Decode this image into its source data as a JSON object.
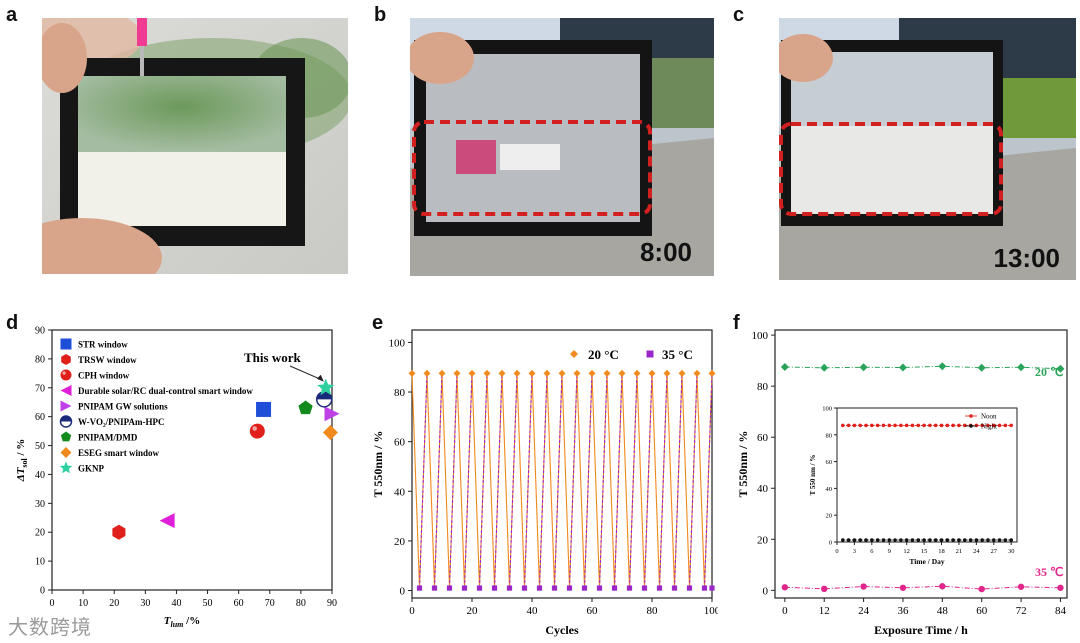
{
  "panels": {
    "a": "a",
    "b": "b",
    "c": "c",
    "d": "d",
    "e": "e",
    "f": "f"
  },
  "photos": {
    "b_time": "8:00",
    "c_time": "13:00"
  },
  "watermark": "大数跨境",
  "chart_data": [
    {
      "panel": "d",
      "type": "scatter",
      "xlabel_main": "T",
      "xlabel_sub": "lum",
      "xlabel_unit": " /%",
      "ylabel_main": "ΔT",
      "ylabel_sub": "sol",
      "ylabel_unit": " / %",
      "xlim": [
        0,
        90
      ],
      "ylim": [
        0,
        90
      ],
      "xticks": [
        "0",
        "10",
        "20",
        "30",
        "40",
        "50",
        "60",
        "70",
        "80",
        "90"
      ],
      "yticks": [
        "0",
        "10",
        "20",
        "30",
        "40",
        "50",
        "60",
        "70",
        "80",
        "90"
      ],
      "annotation": "This work",
      "series": [
        {
          "name": "STR window",
          "marker": "square",
          "color": "#1f4fd8",
          "points": [
            [
              68,
              62.5
            ]
          ]
        },
        {
          "name": "TRSW window",
          "marker": "hexagon",
          "color": "#e0201b",
          "points": [
            [
              21.5,
              20
            ]
          ]
        },
        {
          "name": "CPH window",
          "marker": "sphere",
          "color": "#e0201b",
          "points": [
            [
              66,
              55
            ]
          ]
        },
        {
          "name": "Durable solar/RC dual-control smart window",
          "marker": "triangle-left",
          "color": "#e020d8",
          "points": [
            [
              37,
              24
            ]
          ]
        },
        {
          "name": "PNIPAM GW solutions",
          "marker": "triangle-right",
          "color": "#c040e8",
          "points": [
            [
              90,
              61
            ]
          ]
        },
        {
          "name": "W-VO₂/PNIPAm-HPC",
          "marker": "half-circle",
          "color": "#1a2a7a",
          "points": [
            [
              87.5,
              66
            ]
          ]
        },
        {
          "name": "PNIPAM/DMD",
          "marker": "pentagon",
          "color": "#138a1e",
          "points": [
            [
              81.5,
              63
            ]
          ]
        },
        {
          "name": "ESEG smart window",
          "marker": "diamond",
          "color": "#f08a1c",
          "points": [
            [
              89.5,
              54.5
            ]
          ]
        },
        {
          "name": "GKNP",
          "marker": "star",
          "color": "#2ed0a0",
          "points": [
            [
              88,
              70
            ]
          ]
        }
      ]
    },
    {
      "panel": "e",
      "type": "line",
      "xlabel": "Cycles",
      "ylabel": "T 550nm / %",
      "xlim": [
        0,
        100
      ],
      "ylim": [
        -3,
        105
      ],
      "xticks": [
        "0",
        "20",
        "40",
        "60",
        "80",
        "100"
      ],
      "yticks": [
        "0",
        "20",
        "40",
        "60",
        "80",
        "100"
      ],
      "series": [
        {
          "name": "20 °C",
          "color": "#f08a1c",
          "marker": "diamond",
          "value": 87.5
        },
        {
          "name": "35 °C",
          "color": "#9b27c8",
          "marker": "square",
          "value": 1
        }
      ],
      "cycle_x": [
        0,
        5,
        10,
        15,
        20,
        25,
        30,
        35,
        40,
        45,
        50,
        55,
        60,
        65,
        70,
        75,
        80,
        85,
        90,
        95,
        100
      ]
    },
    {
      "panel": "f",
      "type": "line",
      "xlabel": "Exposure Time / h",
      "ylabel": "T 550nm / %",
      "xlim": [
        -3,
        86
      ],
      "ylim": [
        -3,
        102
      ],
      "xticks": [
        "0",
        "12",
        "24",
        "36",
        "48",
        "60",
        "72",
        "84"
      ],
      "yticks": [
        "0",
        "20",
        "40",
        "60",
        "80",
        "100"
      ],
      "series": [
        {
          "name": "20 ℃",
          "color": "#2aa45a",
          "x": [
            0,
            12,
            24,
            36,
            48,
            60,
            72,
            84
          ],
          "y": [
            87.5,
            87.2,
            87.4,
            87.3,
            87.8,
            87.2,
            87.4,
            86.8
          ]
        },
        {
          "name": "35 ℃",
          "color": "#e0268a",
          "x": [
            0,
            12,
            24,
            36,
            48,
            60,
            72,
            84
          ],
          "y": [
            1.2,
            0.6,
            1.5,
            1.0,
            1.6,
            0.5,
            1.4,
            1.0
          ]
        }
      ],
      "inset": {
        "type": "line",
        "xlabel": "Time / Day",
        "ylabel": "T 550 nm / %",
        "xlim": [
          0,
          31
        ],
        "ylim": [
          0,
          100
        ],
        "xticks": [
          "0",
          "3",
          "6",
          "9",
          "12",
          "15",
          "18",
          "21",
          "24",
          "27",
          "30"
        ],
        "yticks": [
          "0",
          "20",
          "40",
          "60",
          "80",
          "100"
        ],
        "series": [
          {
            "name": "Noon",
            "color": "#e0201b",
            "value": 87
          },
          {
            "name": "Night",
            "color": "#111111",
            "value": 1.5
          }
        ]
      }
    }
  ]
}
